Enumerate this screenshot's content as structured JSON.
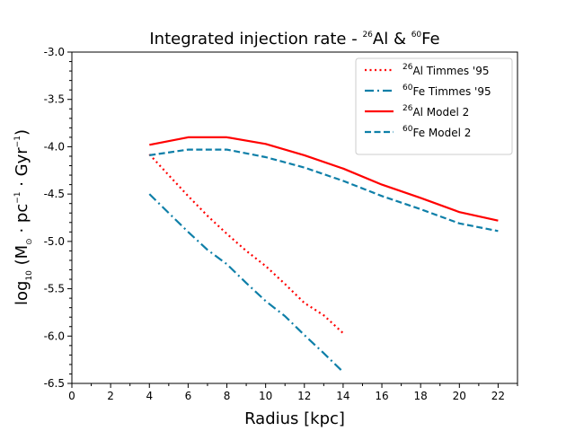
{
  "chart_data": {
    "type": "line",
    "title": {
      "prefix": "Integrated injection rate - ",
      "al_sup": "26",
      "al_base": "Al & ",
      "fe_sup": "60",
      "fe_base": "Fe"
    },
    "xlabel": "Radius [kpc]",
    "ylabel": {
      "pre": "log",
      "sub": "10",
      "mid": " (M",
      "sun_sub": "⊙",
      "dot1": " · pc",
      "pc_sup": "−1",
      "dot2": " · Gyr",
      "gyr_sup": "−1",
      "end": ")"
    },
    "xlim": [
      0,
      23
    ],
    "ylim": [
      -6.5,
      -3.0
    ],
    "x_ticks_major": [
      "0",
      "2",
      "4",
      "6",
      "8",
      "10",
      "12",
      "14",
      "16",
      "18",
      "20",
      "22"
    ],
    "y_ticks_major": [
      "-3.0",
      "-3.5",
      "-4.0",
      "-4.5",
      "-5.0",
      "-5.5",
      "-6.0",
      "-6.5"
    ],
    "legend_position": "top-right",
    "series": [
      {
        "name_sup": "26",
        "name_rest": "Al Timmes '95",
        "color": "#ff0000",
        "style": "dotted",
        "x": [
          4,
          5,
          6,
          7,
          8,
          9,
          10,
          11,
          12,
          13,
          14
        ],
        "y": [
          -4.08,
          -4.3,
          -4.52,
          -4.73,
          -4.92,
          -5.1,
          -5.26,
          -5.45,
          -5.65,
          -5.78,
          -5.97
        ]
      },
      {
        "name_sup": "60",
        "name_rest": "Fe Timmes '95",
        "color": "#0e7fa8",
        "style": "dashdot",
        "x": [
          4,
          5,
          6,
          7,
          8,
          9,
          10,
          11,
          12,
          13,
          14
        ],
        "y": [
          -4.5,
          -4.7,
          -4.9,
          -5.09,
          -5.24,
          -5.44,
          -5.63,
          -5.79,
          -5.99,
          -6.18,
          -6.38
        ]
      },
      {
        "name_sup": "26",
        "name_rest": "Al Model 2",
        "color": "#ff0000",
        "style": "solid",
        "x": [
          4,
          6,
          8,
          10,
          12,
          14,
          16,
          18,
          20,
          22
        ],
        "y": [
          -3.98,
          -3.9,
          -3.9,
          -3.97,
          -4.09,
          -4.23,
          -4.4,
          -4.54,
          -4.69,
          -4.78
        ]
      },
      {
        "name_sup": "60",
        "name_rest": "Fe Model 2",
        "color": "#0e7fa8",
        "style": "dashed",
        "x": [
          4,
          6,
          8,
          10,
          12,
          14,
          16,
          18,
          20,
          22
        ],
        "y": [
          -4.09,
          -4.03,
          -4.03,
          -4.11,
          -4.22,
          -4.36,
          -4.52,
          -4.66,
          -4.81,
          -4.89
        ]
      }
    ]
  }
}
